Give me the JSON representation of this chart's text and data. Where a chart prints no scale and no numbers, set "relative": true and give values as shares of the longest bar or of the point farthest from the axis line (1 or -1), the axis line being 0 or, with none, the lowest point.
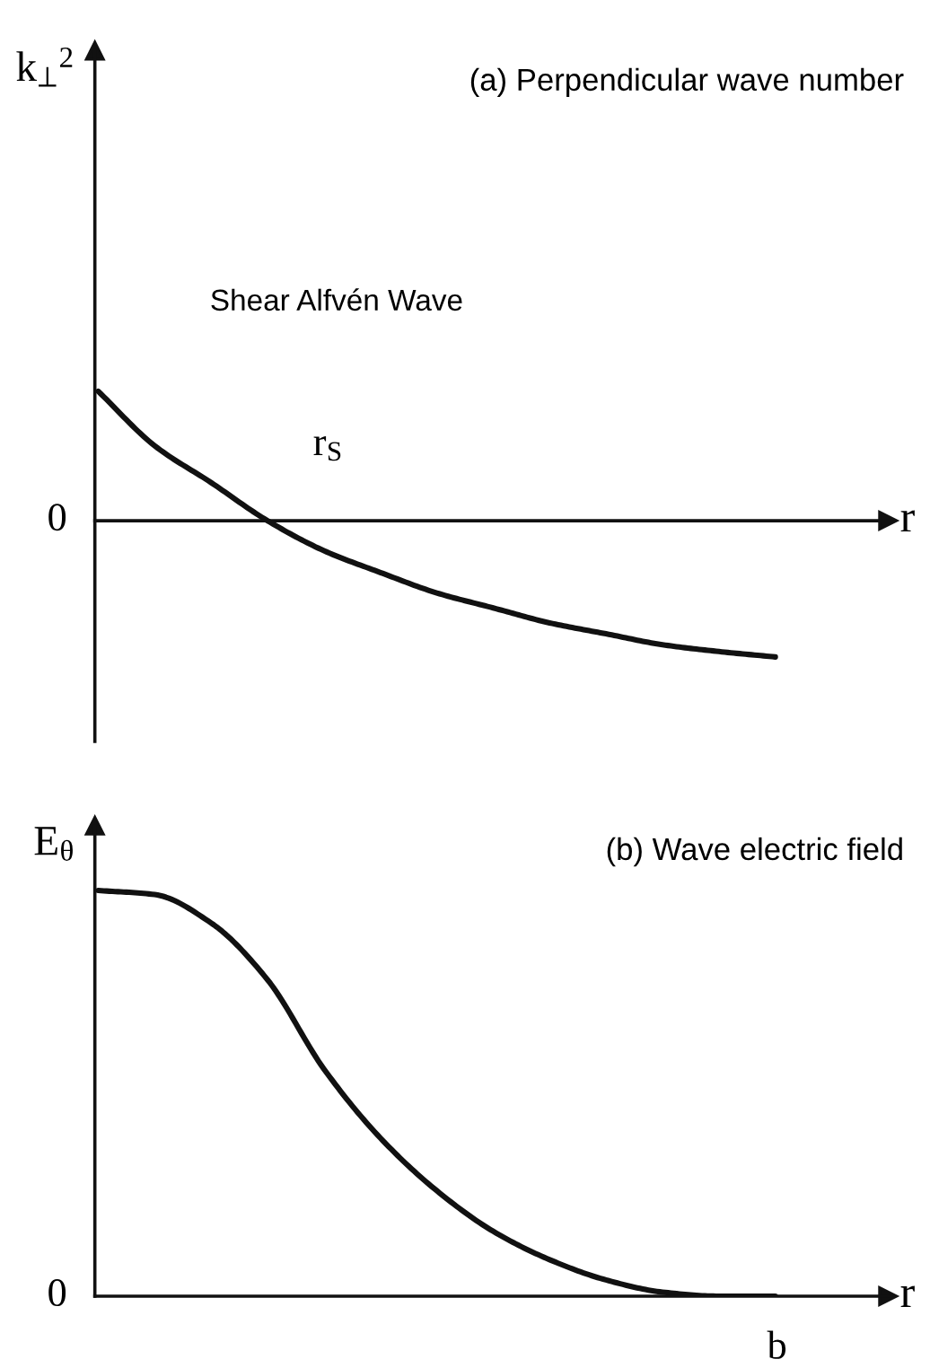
{
  "chart_data": [
    {
      "type": "line",
      "title": "(a) Perpendicular wave number",
      "xlabel": "r",
      "ylabel": "k$_{⊥}$$^{2}$",
      "relative": true,
      "categories": [
        null,
        null,
        null,
        null,
        null,
        null,
        null,
        null,
        null,
        null,
        null,
        null,
        null,
        null,
        null
      ],
      "series": [
        {
          "color": "#111111",
          "values": [
            0.95,
            0.55,
            0.28,
            0.0,
            -0.22,
            -0.38,
            -0.53,
            -0.64,
            -0.75,
            -0.83,
            -0.91,
            -0.96,
            -1.0,
            null,
            null
          ]
        }
      ],
      "annotations": [
        "Shear Alfvén Wave",
        "r$_{S}$",
        "0"
      ]
    },
    {
      "type": "line",
      "title": "(b) Wave electric field",
      "xlabel": "r",
      "ylabel": "E$_{θ}$",
      "relative": true,
      "categories": [
        null,
        null,
        null,
        null,
        null,
        null,
        null,
        null,
        null,
        null,
        null,
        null,
        null,
        null,
        null
      ],
      "series": [
        {
          "color": "#111111",
          "values": [
            1.0,
            0.99,
            0.92,
            0.78,
            0.56,
            0.39,
            0.26,
            0.16,
            0.09,
            0.04,
            0.01,
            0.0,
            0.0,
            null,
            null
          ]
        }
      ],
      "annotations": [
        "0",
        "b"
      ]
    }
  ]
}
